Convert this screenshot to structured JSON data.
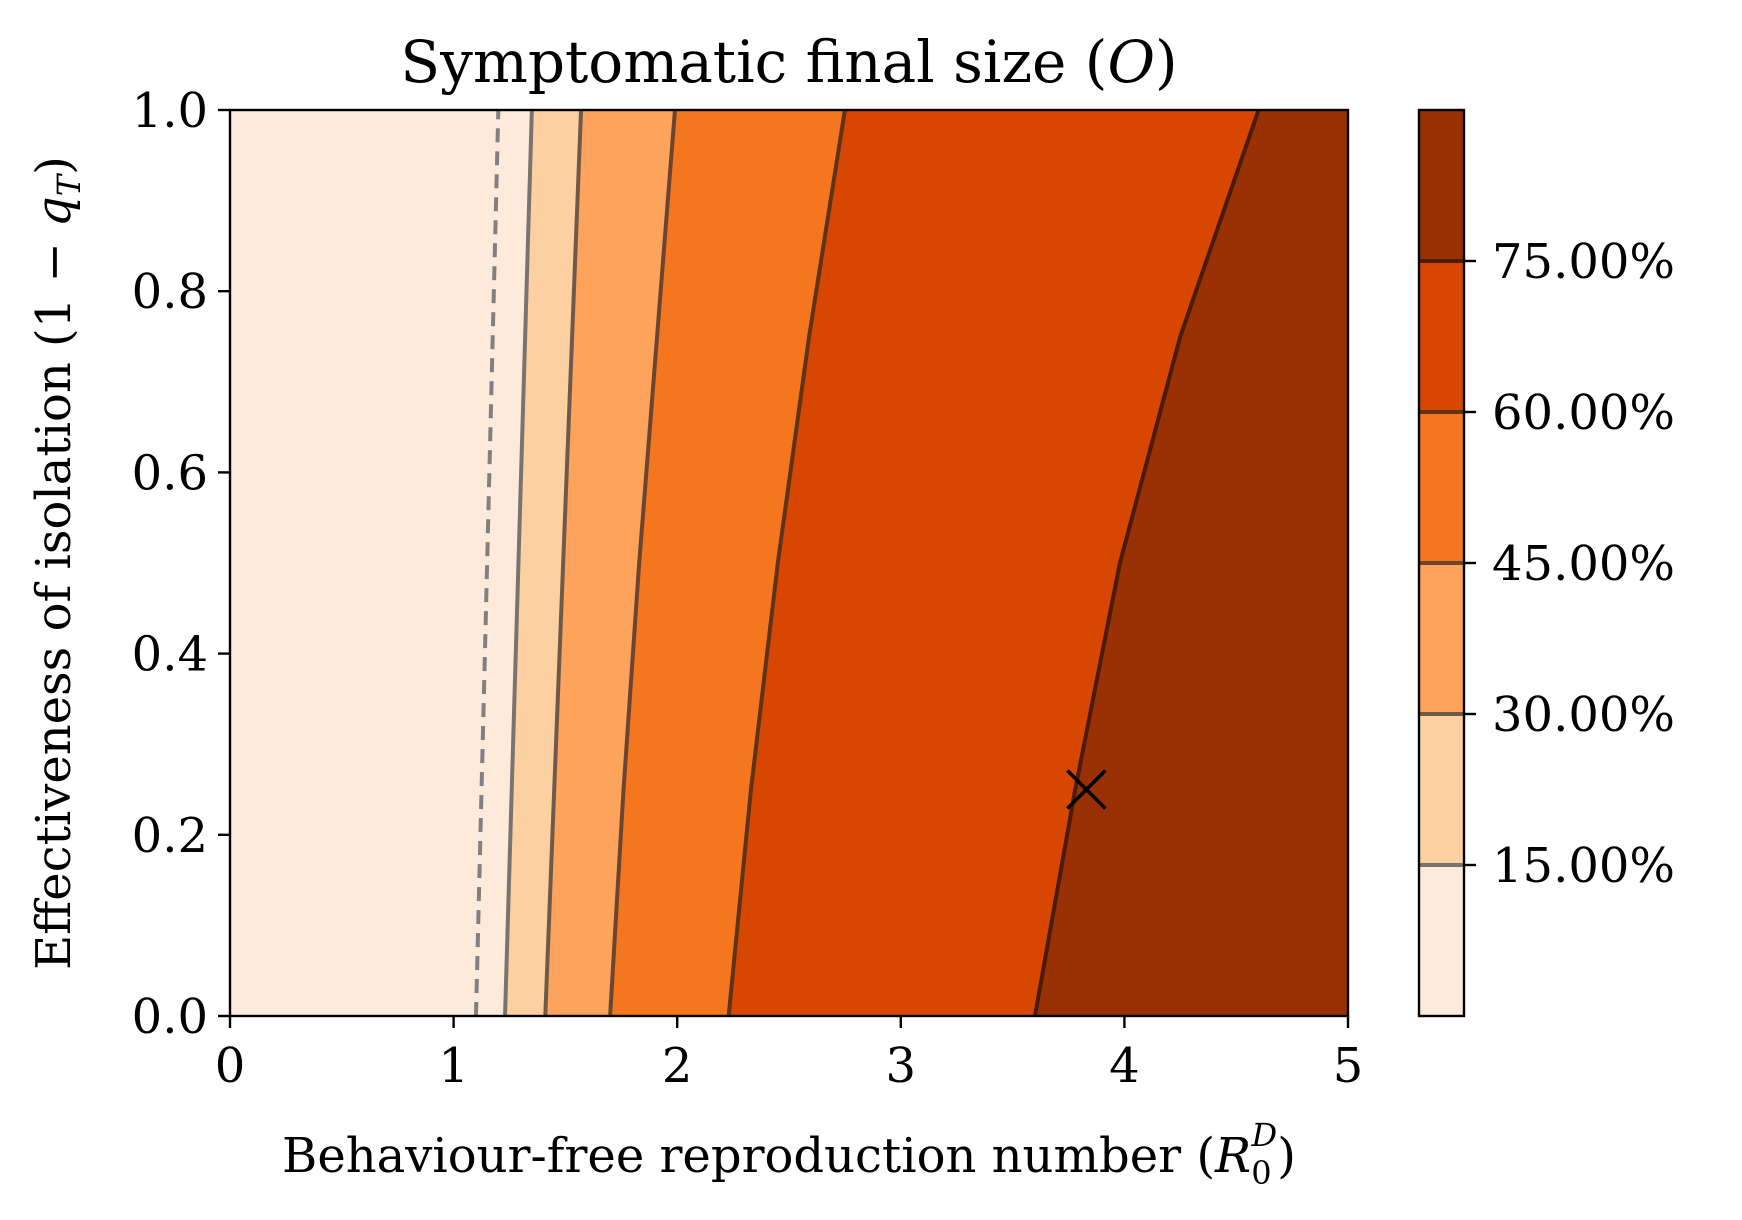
{
  "chart_data": {
    "type": "contour",
    "title": "Symptomatic final size (O)",
    "title_parts": [
      "Symptomatic final size (",
      "O",
      ")"
    ],
    "xlabel": "Behaviour-free reproduction number (R0D)",
    "xlabel_parts": [
      "Behaviour-free reproduction number (",
      "R",
      "0",
      "D",
      ")"
    ],
    "ylabel": "Effectiveness of isolation (1 − qT)",
    "ylabel_parts": [
      "Effectiveness of isolation (1 − ",
      "q",
      "T",
      ")"
    ],
    "xlim": [
      0,
      5
    ],
    "ylim": [
      0,
      1
    ],
    "xticks": [
      0,
      1,
      2,
      3,
      4,
      5
    ],
    "xtick_labels": [
      "0",
      "1",
      "2",
      "3",
      "4",
      "5"
    ],
    "yticks": [
      0,
      0.2,
      0.4,
      0.6,
      0.8,
      1.0
    ],
    "ytick_labels": [
      "0.0",
      "0.2",
      "0.4",
      "0.6",
      "0.8",
      "1.0"
    ],
    "levels": [
      0,
      0.15,
      0.3,
      0.45,
      0.6,
      0.75,
      0.9
    ],
    "colorbar_ticks": [
      0.15,
      0.3,
      0.45,
      0.6,
      0.75
    ],
    "colorbar_labels": [
      "15.00%",
      "30.00%",
      "45.00%",
      "60.00%",
      "75.00%"
    ],
    "band_colors": [
      "#feeada",
      "#fdd0a2",
      "#fda35c",
      "#f4761f",
      "#d84701",
      "#993104"
    ],
    "contour_line_colors": [
      "#7a7370",
      "#6f5a4a",
      "#6b4530",
      "#5e3317",
      "#4a1c05"
    ],
    "threshold_line": {
      "style": "dashed",
      "color": "#808080",
      "points": [
        [
          1.1,
          0.0
        ],
        [
          1.2,
          1.0
        ]
      ]
    },
    "contour_lines": [
      {
        "level": 0.15,
        "points": [
          [
            1.23,
            0.0
          ],
          [
            1.26,
            0.25
          ],
          [
            1.29,
            0.5
          ],
          [
            1.32,
            0.75
          ],
          [
            1.35,
            1.0
          ]
        ]
      },
      {
        "level": 0.3,
        "points": [
          [
            1.41,
            0.0
          ],
          [
            1.45,
            0.25
          ],
          [
            1.49,
            0.5
          ],
          [
            1.53,
            0.75
          ],
          [
            1.57,
            1.0
          ]
        ]
      },
      {
        "level": 0.45,
        "points": [
          [
            1.7,
            0.0
          ],
          [
            1.76,
            0.25
          ],
          [
            1.83,
            0.5
          ],
          [
            1.91,
            0.75
          ],
          [
            1.99,
            1.0
          ]
        ]
      },
      {
        "level": 0.6,
        "points": [
          [
            2.23,
            0.0
          ],
          [
            2.33,
            0.25
          ],
          [
            2.45,
            0.5
          ],
          [
            2.59,
            0.75
          ],
          [
            2.75,
            1.0
          ]
        ]
      },
      {
        "level": 0.75,
        "points": [
          [
            3.6,
            0.0
          ],
          [
            3.78,
            0.25
          ],
          [
            3.98,
            0.5
          ],
          [
            4.25,
            0.75
          ],
          [
            4.6,
            1.0
          ]
        ]
      }
    ],
    "marker": {
      "symbol": "x",
      "x": 3.83,
      "y": 0.25,
      "color": "#000000"
    }
  }
}
